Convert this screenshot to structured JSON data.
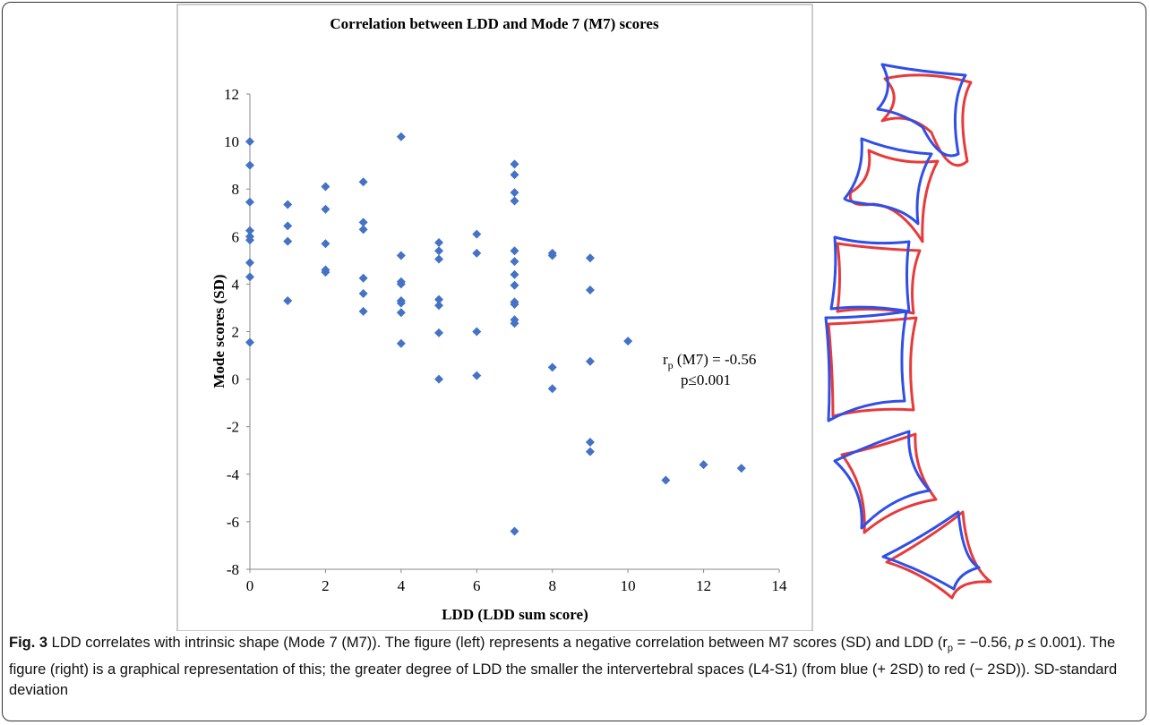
{
  "chart_data": {
    "type": "scatter",
    "title": "Correlation between LDD and Mode 7 (M7) scores",
    "x_label": "LDD (LDD sum score)",
    "y_label": "Mode scores (SD)",
    "annotation": [
      [
        "r",
        "p",
        " (M7) = -0.56"
      ],
      "p≤0.001"
    ],
    "color": "#4472c4",
    "x": [
      0,
      0,
      0,
      0,
      0,
      0,
      0,
      0,
      0,
      1,
      1,
      1,
      1,
      2,
      2,
      2,
      2,
      2,
      3,
      3,
      3,
      3,
      3,
      3,
      4,
      4,
      4,
      4,
      4,
      4,
      4,
      4,
      5,
      5,
      5,
      5,
      5,
      5,
      5,
      6,
      6,
      6,
      6,
      7,
      7,
      7,
      7,
      7,
      7,
      7,
      7,
      7,
      7,
      7,
      7,
      7,
      8,
      8,
      8,
      8,
      9,
      9,
      9,
      9,
      9,
      10,
      11,
      12,
      13
    ],
    "y": [
      10,
      9,
      7.45,
      6.25,
      6,
      5.85,
      4.9,
      4.3,
      1.55,
      7.35,
      6.45,
      5.8,
      3.3,
      8.1,
      7.15,
      5.7,
      4.6,
      4.5,
      8.3,
      6.6,
      6.3,
      4.25,
      3.6,
      2.85,
      10.2,
      5.2,
      4.1,
      4,
      3.3,
      3.2,
      2.8,
      1.5,
      5.75,
      5.4,
      5.05,
      3.35,
      3.1,
      1.95,
      0,
      6.1,
      5.3,
      2,
      0.15,
      9.05,
      8.6,
      7.85,
      7.5,
      5.4,
      4.95,
      4.4,
      3.95,
      3.25,
      3.15,
      2.5,
      2.35,
      -6.4,
      5.3,
      5.2,
      0.5,
      -0.4,
      5.1,
      3.75,
      0.75,
      -2.65,
      -3.05,
      1.6,
      -4.25,
      -3.6,
      -3.75
    ],
    "xlim": [
      0,
      14
    ],
    "xticks": [
      0,
      2,
      4,
      6,
      8,
      10,
      12,
      14
    ],
    "ylim": [
      -8,
      12
    ],
    "yticks": [
      -8,
      -6,
      -4,
      -2,
      0,
      2,
      4,
      6,
      8,
      10,
      12
    ]
  },
  "caption": [
    "Fig. 3",
    " LDD correlates with intrinsic shape (Mode 7 (M7)). The figure (left) represents a negative correlation between M7 scores (SD) and LDD (r",
    "p",
    " = −0.56, ",
    "p",
    " ≤ 0.001). The figure (right) is a graphical representation of this; the greater degree of LDD the smaller the intervertebral spaces (L4-S1) (from blue (+ 2SD) to red (− 2SD)). SD-standard deviation"
  ]
}
